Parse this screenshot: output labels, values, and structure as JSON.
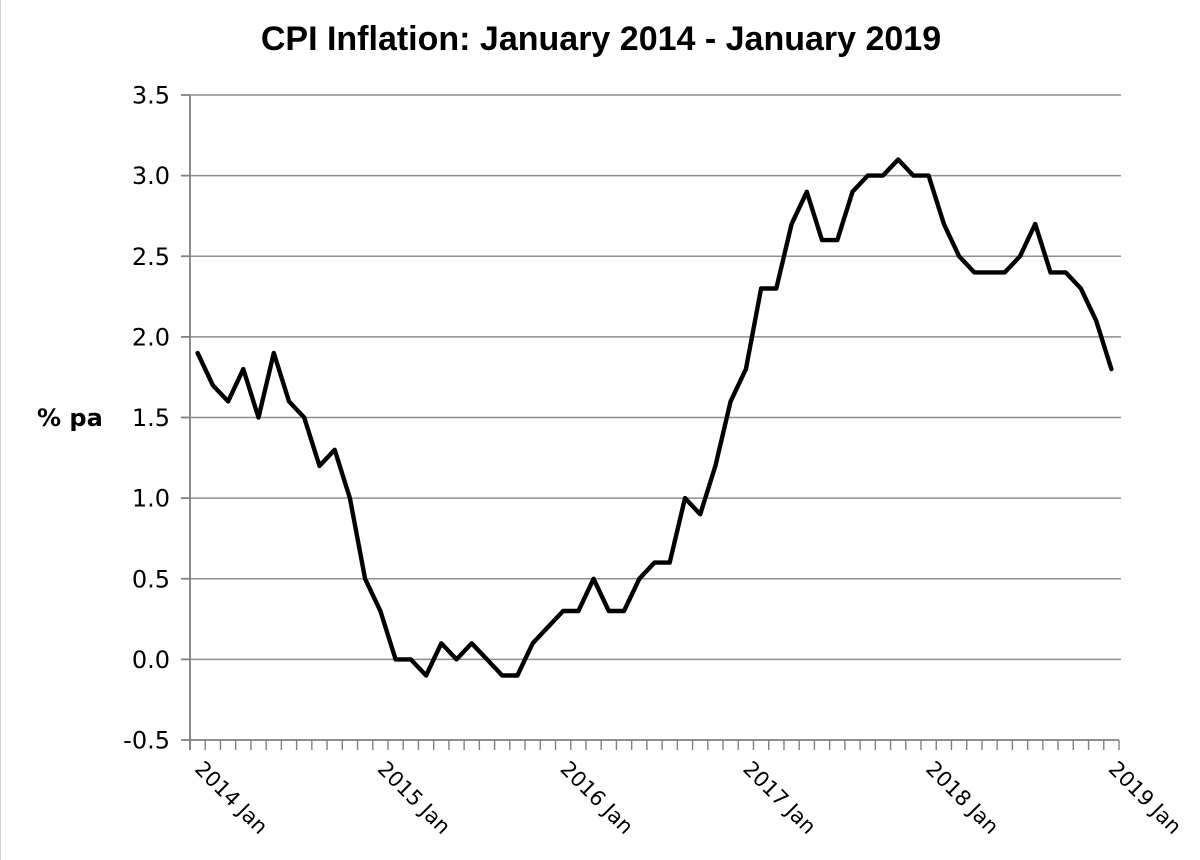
{
  "chart_data": {
    "type": "line",
    "title": "CPI Inflation: January 2014 - January 2019",
    "ylabel": "% pa",
    "xlabel": "",
    "ylim": [
      -0.5,
      3.5
    ],
    "ytick_step": 0.5,
    "grid": true,
    "legend": "none",
    "x_freq": "monthly",
    "months": [
      "2014 Jan",
      "2014 Feb",
      "2014 Mar",
      "2014 Apr",
      "2014 May",
      "2014 Jun",
      "2014 Jul",
      "2014 Aug",
      "2014 Sep",
      "2014 Oct",
      "2014 Nov",
      "2014 Dec",
      "2015 Jan",
      "2015 Feb",
      "2015 Mar",
      "2015 Apr",
      "2015 May",
      "2015 Jun",
      "2015 Jul",
      "2015 Aug",
      "2015 Sep",
      "2015 Oct",
      "2015 Nov",
      "2015 Dec",
      "2016 Jan",
      "2016 Feb",
      "2016 Mar",
      "2016 Apr",
      "2016 May",
      "2016 Jun",
      "2016 Jul",
      "2016 Aug",
      "2016 Sep",
      "2016 Oct",
      "2016 Nov",
      "2016 Dec",
      "2017 Jan",
      "2017 Feb",
      "2017 Mar",
      "2017 Apr",
      "2017 May",
      "2017 Jun",
      "2017 Jul",
      "2017 Aug",
      "2017 Sep",
      "2017 Oct",
      "2017 Nov",
      "2017 Dec",
      "2018 Jan",
      "2018 Feb",
      "2018 Mar",
      "2018 Apr",
      "2018 May",
      "2018 Jun",
      "2018 Jul",
      "2018 Aug",
      "2018 Sep",
      "2018 Oct",
      "2018 Nov",
      "2018 Dec",
      "2019 Jan"
    ],
    "series": [
      {
        "name": "CPI inflation (% pa)",
        "values": [
          1.9,
          1.7,
          1.6,
          1.8,
          1.5,
          1.9,
          1.6,
          1.5,
          1.2,
          1.3,
          1.0,
          0.5,
          0.3,
          0.0,
          0.0,
          -0.1,
          0.1,
          0.0,
          0.1,
          0.0,
          -0.1,
          -0.1,
          0.1,
          0.2,
          0.3,
          0.3,
          0.5,
          0.3,
          0.3,
          0.5,
          0.6,
          0.6,
          1.0,
          0.9,
          1.2,
          1.6,
          1.8,
          2.3,
          2.3,
          2.7,
          2.9,
          2.6,
          2.6,
          2.9,
          3.0,
          3.0,
          3.1,
          3.0,
          3.0,
          2.7,
          2.5,
          2.4,
          2.4,
          2.4,
          2.5,
          2.7,
          2.4,
          2.4,
          2.3,
          2.1,
          1.8
        ]
      }
    ],
    "yticks": [
      {
        "value": 3.5,
        "label": "3.5"
      },
      {
        "value": 3.0,
        "label": "3.0"
      },
      {
        "value": 2.5,
        "label": "2.5"
      },
      {
        "value": 2.0,
        "label": "2.0"
      },
      {
        "value": 1.5,
        "label": "1.5"
      },
      {
        "value": 1.0,
        "label": "1.0"
      },
      {
        "value": 0.5,
        "label": "0.5"
      },
      {
        "value": 0.0,
        "label": "0.0"
      },
      {
        "value": -0.5,
        "label": "-0.5"
      }
    ],
    "xticks": [
      {
        "index": 0,
        "label": "2014 Jan"
      },
      {
        "index": 12,
        "label": "2015 Jan"
      },
      {
        "index": 24,
        "label": "2016 Jan"
      },
      {
        "index": 36,
        "label": "2017 Jan"
      },
      {
        "index": 48,
        "label": "2018 Jan"
      },
      {
        "index": 60,
        "label": "2019 Jan"
      }
    ],
    "colors": {
      "line": "#000000",
      "grid": "#8e8e8e",
      "axis": "#808080",
      "text": "#000000",
      "background": "#ffffff"
    }
  }
}
